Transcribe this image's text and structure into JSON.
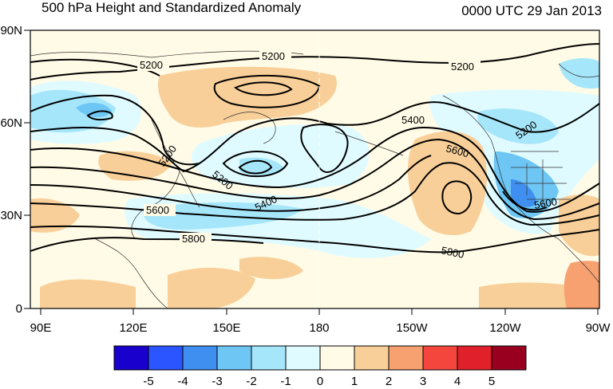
{
  "header": {
    "title": "500 hPa Height and Standardized Anomaly",
    "date": "0000 UTC 29 Jan 2013"
  },
  "map": {
    "lat_labels": [
      "90N",
      "60N",
      "30N",
      "0"
    ],
    "lon_labels": [
      "90E",
      "120E",
      "150E",
      "180",
      "150W",
      "120W",
      "90W"
    ],
    "contour_labels": [
      "5200",
      "5200",
      "5200",
      "5200",
      "5200",
      "5200",
      "5400",
      "5400",
      "5600",
      "5600",
      "5600",
      "5800",
      "5800"
    ]
  },
  "colorbar": {
    "labels": [
      "-5",
      "-4",
      "-3",
      "-2",
      "-1",
      "0",
      "1",
      "2",
      "3",
      "4",
      "5"
    ],
    "colors": [
      "#1a00cc",
      "#2a55ff",
      "#3f8ff0",
      "#6ec6f5",
      "#a6e6fa",
      "#e0fbff",
      "#fffbe6",
      "#f8cf98",
      "#f7a070",
      "#f5463e",
      "#e0202a",
      "#990020"
    ]
  }
}
